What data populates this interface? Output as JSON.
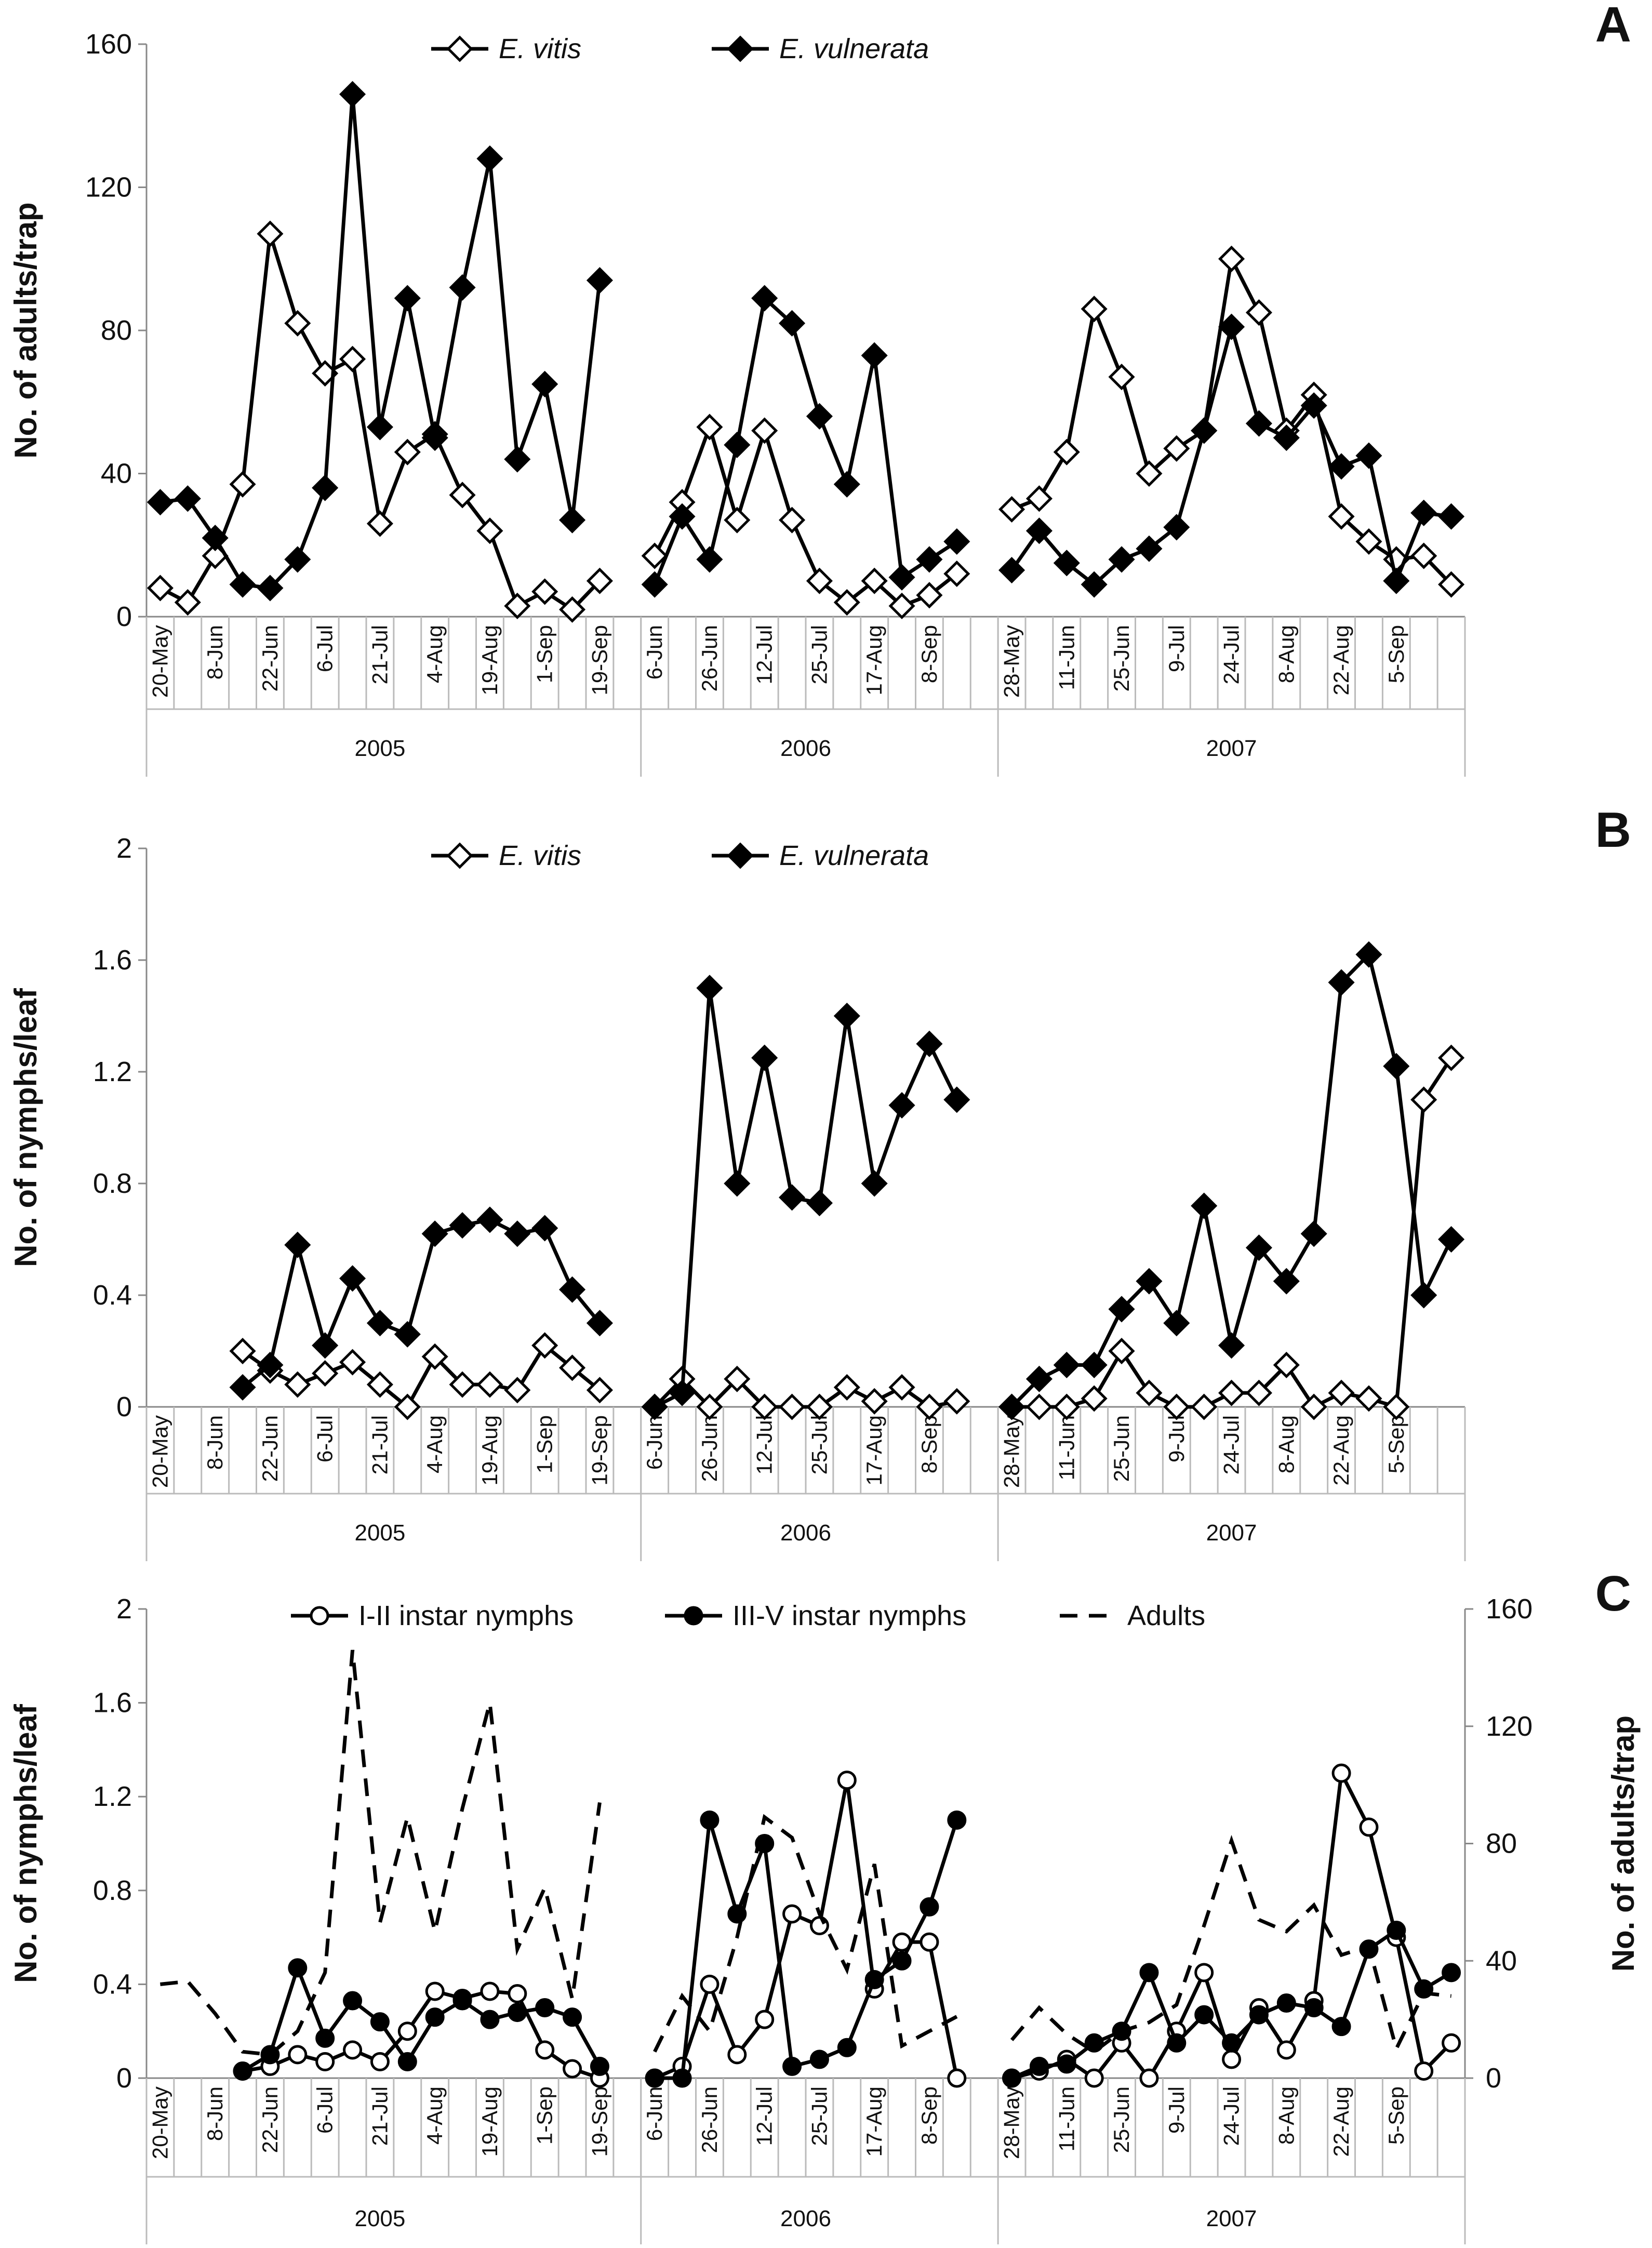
{
  "chart_data": [
    {
      "panel": "A",
      "type": "line",
      "ylabel": "No. of adults/trap",
      "ylim": [
        0,
        160
      ],
      "yticks": [
        0,
        40,
        80,
        120,
        160
      ],
      "legend": [
        "E. vitis",
        "E. vulnerata"
      ],
      "years": [
        {
          "year": "2005",
          "dates": [
            "20-May",
            "8-Jun",
            "22-Jun",
            "6-Jul",
            "21-Jul",
            "4-Aug",
            "19-Aug",
            "1-Sep",
            "19-Sep"
          ]
        },
        {
          "year": "2006",
          "dates": [
            "6-Jun",
            "26-Jun",
            "12-Jul",
            "25-Jul",
            "17-Aug",
            "8-Sep"
          ]
        },
        {
          "year": "2007",
          "dates": [
            "28-May",
            "11-Jun",
            "25-Jun",
            "9-Jul",
            "24-Jul",
            "8-Aug",
            "22-Aug",
            "5-Sep"
          ]
        }
      ],
      "series": [
        {
          "name": "E. vitis",
          "marker": "diamond-open",
          "segments": [
            [
              8,
              4,
              17,
              37,
              107,
              82,
              68,
              72,
              26,
              46,
              51,
              34,
              24,
              3,
              7,
              2,
              10
            ],
            [
              17,
              32,
              53,
              27,
              52,
              27,
              10,
              4,
              10,
              3,
              6,
              12
            ],
            [
              30,
              33,
              46,
              86,
              67,
              40,
              47,
              52,
              100,
              85,
              52,
              62,
              28,
              21,
              16,
              17,
              9
            ]
          ]
        },
        {
          "name": "E. vulnerata",
          "marker": "diamond-filled",
          "segments": [
            [
              32,
              33,
              22,
              9,
              8,
              16,
              36,
              146,
              53,
              89,
              50,
              92,
              128,
              44,
              65,
              27,
              94
            ],
            [
              9,
              28,
              16,
              48,
              89,
              82,
              56,
              37,
              73,
              11,
              16,
              21
            ],
            [
              13,
              24,
              15,
              9,
              16,
              19,
              25,
              52,
              81,
              54,
              50,
              59,
              42,
              45,
              10,
              29,
              28
            ]
          ]
        }
      ]
    },
    {
      "panel": "B",
      "type": "line",
      "ylabel": "No. of nymphs/leaf",
      "ylim": [
        0,
        2
      ],
      "yticks": [
        "0",
        "0.4",
        "0.8",
        "1.2",
        "1.6",
        "2"
      ],
      "legend": [
        "E. vitis",
        "E. vulnerata"
      ],
      "years": [
        {
          "year": "2005",
          "dates": [
            "20-May",
            "8-Jun",
            "22-Jun",
            "6-Jul",
            "21-Jul",
            "4-Aug",
            "19-Aug",
            "1-Sep",
            "19-Sep"
          ]
        },
        {
          "year": "2006",
          "dates": [
            "6-Jun",
            "26-Jun",
            "12-Jul",
            "25-Jul",
            "17-Aug",
            "8-Sep"
          ]
        },
        {
          "year": "2007",
          "dates": [
            "28-May",
            "11-Jun",
            "25-Jun",
            "9-Jul",
            "24-Jul",
            "8-Aug",
            "22-Aug",
            "5-Sep"
          ]
        }
      ],
      "series": [
        {
          "name": "E. vitis",
          "marker": "diamond-open",
          "segments": [
            [
              null,
              null,
              null,
              0.2,
              0.13,
              0.08,
              0.12,
              0.16,
              0.08,
              0.0,
              0.18,
              0.08,
              0.08,
              0.06,
              0.22,
              0.14,
              0.06
            ],
            [
              0.0,
              0.1,
              0.0,
              0.1,
              0.0,
              0.0,
              0.0,
              0.07,
              0.02,
              0.07,
              0.0,
              0.02
            ],
            [
              0.0,
              0.0,
              0.0,
              0.03,
              0.2,
              0.05,
              0.0,
              0.0,
              0.05,
              0.05,
              0.15,
              0.0,
              0.05,
              0.03,
              0.0,
              1.1,
              1.25
            ]
          ]
        },
        {
          "name": "E. vulnerata",
          "marker": "diamond-filled",
          "segments": [
            [
              null,
              null,
              null,
              0.07,
              0.15,
              0.58,
              0.22,
              0.46,
              0.3,
              0.26,
              0.62,
              0.65,
              0.67,
              0.62,
              0.64,
              0.42,
              0.3
            ],
            [
              0.0,
              0.05,
              1.5,
              0.8,
              1.25,
              0.75,
              0.73,
              1.4,
              0.8,
              1.08,
              1.3,
              1.1
            ],
            [
              0.0,
              0.1,
              0.15,
              0.15,
              0.35,
              0.45,
              0.3,
              0.72,
              0.22,
              0.57,
              0.45,
              0.62,
              1.52,
              1.62,
              1.22,
              0.4,
              0.6
            ]
          ]
        }
      ]
    },
    {
      "panel": "C",
      "type": "line",
      "ylabel": "No. of nymphs/leaf",
      "ylabel_right": "No. of adults/trap",
      "ylim": [
        0,
        2
      ],
      "yticks": [
        "0",
        "0.4",
        "0.8",
        "1.2",
        "1.6",
        "2"
      ],
      "ylim_right": [
        0,
        160
      ],
      "yticks_right": [
        0,
        40,
        80,
        120,
        160
      ],
      "legend": [
        "I-II instar nymphs",
        "III-V instar nymphs",
        "Adults"
      ],
      "years": [
        {
          "year": "2005",
          "dates": [
            "20-May",
            "8-Jun",
            "22-Jun",
            "6-Jul",
            "21-Jul",
            "4-Aug",
            "19-Aug",
            "1-Sep",
            "19-Sep"
          ]
        },
        {
          "year": "2006",
          "dates": [
            "6-Jun",
            "26-Jun",
            "12-Jul",
            "25-Jul",
            "17-Aug",
            "8-Sep"
          ]
        },
        {
          "year": "2007",
          "dates": [
            "28-May",
            "11-Jun",
            "25-Jun",
            "9-Jul",
            "24-Jul",
            "8-Aug",
            "22-Aug",
            "5-Sep"
          ]
        }
      ],
      "series": [
        {
          "name": "I-II instar nymphs",
          "marker": "circle-open",
          "axis": "left",
          "segments": [
            [
              null,
              null,
              null,
              0.03,
              0.05,
              0.1,
              0.07,
              0.12,
              0.07,
              0.2,
              0.37,
              0.34,
              0.37,
              0.36,
              0.12,
              0.04,
              0.0
            ],
            [
              0.0,
              0.05,
              0.4,
              0.1,
              0.25,
              0.7,
              0.65,
              1.27,
              0.38,
              0.58,
              0.58,
              0.0
            ],
            [
              0.0,
              0.03,
              0.08,
              0.0,
              0.15,
              0.0,
              0.2,
              0.45,
              0.08,
              0.3,
              0.12,
              0.33,
              1.3,
              1.07,
              0.6,
              0.03,
              0.15
            ]
          ]
        },
        {
          "name": "III-V instar nymphs",
          "marker": "circle-filled",
          "axis": "left",
          "segments": [
            [
              null,
              null,
              null,
              0.03,
              0.1,
              0.47,
              0.17,
              0.33,
              0.24,
              0.07,
              0.26,
              0.33,
              0.25,
              0.28,
              0.3,
              0.26,
              0.05
            ],
            [
              0.0,
              0.0,
              1.1,
              0.7,
              1.0,
              0.05,
              0.08,
              0.13,
              0.42,
              0.5,
              0.73,
              1.1
            ],
            [
              0.0,
              0.05,
              0.06,
              0.15,
              0.2,
              0.45,
              0.15,
              0.27,
              0.15,
              0.27,
              0.32,
              0.3,
              0.22,
              0.55,
              0.63,
              0.38,
              0.45
            ]
          ]
        },
        {
          "name": "Adults",
          "marker": "none",
          "style": "dashed",
          "axis": "right",
          "segments": [
            [
              32,
              33,
              22,
              9,
              8,
              16,
              36,
              146,
              53,
              89,
              50,
              92,
              128,
              44,
              65,
              27,
              94
            ],
            [
              9,
              28,
              16,
              48,
              89,
              82,
              56,
              37,
              73,
              11,
              16,
              21
            ],
            [
              13,
              24,
              15,
              9,
              16,
              19,
              25,
              52,
              81,
              54,
              50,
              59,
              42,
              45,
              10,
              29,
              28
            ]
          ]
        }
      ]
    }
  ]
}
